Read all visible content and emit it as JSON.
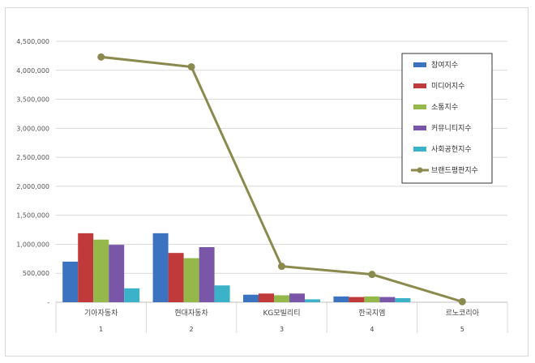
{
  "chart_data": {
    "type": "bar",
    "categories": [
      "기아자동차",
      "현대자동차",
      "KG모빌리티",
      "한국지엠",
      "르노코리아"
    ],
    "ranks": [
      "1",
      "2",
      "3",
      "4",
      "5"
    ],
    "ylim": [
      0,
      4500000
    ],
    "yticks": [
      {
        "value": 0,
        "label": "-"
      },
      {
        "value": 500000,
        "label": "500,000"
      },
      {
        "value": 1000000,
        "label": "1,000,000"
      },
      {
        "value": 1500000,
        "label": "1,500,000"
      },
      {
        "value": 2000000,
        "label": "2,000,000"
      },
      {
        "value": 2500000,
        "label": "2,500,000"
      },
      {
        "value": 3000000,
        "label": "3,000,000"
      },
      {
        "value": 3500000,
        "label": "3,500,000"
      },
      {
        "value": 4000000,
        "label": "4,000,000"
      },
      {
        "value": 4500000,
        "label": "4,500,000"
      }
    ],
    "grid": true,
    "legend_position": "top-right",
    "series": [
      {
        "name": "참여지수",
        "type": "bar",
        "color": "#3b73c0",
        "values": [
          700000,
          1190000,
          130000,
          100000,
          0
        ]
      },
      {
        "name": "미디어지수",
        "type": "bar",
        "color": "#c0393b",
        "values": [
          1190000,
          850000,
          150000,
          90000,
          0
        ]
      },
      {
        "name": "소통지수",
        "type": "bar",
        "color": "#94b94a",
        "values": [
          1080000,
          760000,
          120000,
          100000,
          0
        ]
      },
      {
        "name": "커뮤니티지수",
        "type": "bar",
        "color": "#7a56a8",
        "values": [
          990000,
          950000,
          150000,
          90000,
          0
        ]
      },
      {
        "name": "사회공헌지수",
        "type": "bar",
        "color": "#3cb2c8",
        "values": [
          240000,
          290000,
          50000,
          70000,
          0
        ]
      },
      {
        "name": "브랜드평판지수",
        "type": "line",
        "color": "#8b8a4e",
        "values": [
          4230000,
          4060000,
          620000,
          480000,
          10000
        ]
      }
    ]
  }
}
